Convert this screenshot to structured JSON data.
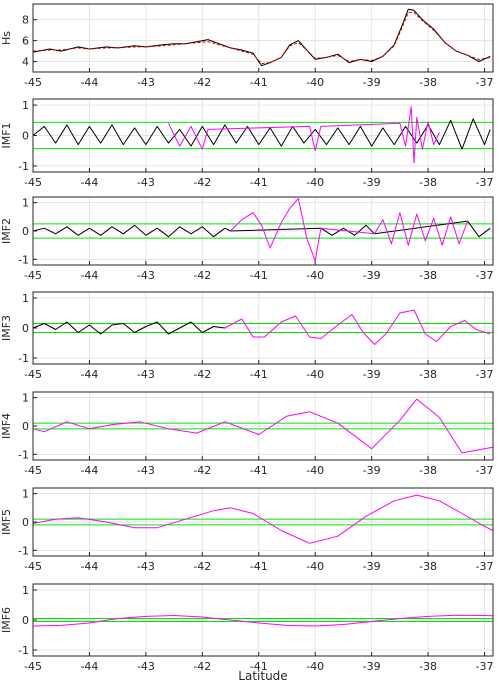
{
  "chart_data": {
    "type": "line",
    "xlabel": "Latitude",
    "xlim": [
      -45,
      -36.85
    ],
    "xticks": [
      -45,
      -44,
      -43,
      -42,
      -41,
      -40,
      -39,
      -38,
      -37
    ],
    "colors": {
      "signal": "#000000",
      "overlay": "#ff00ff",
      "reconstruction": "#cc0000",
      "threshold": "#00e600",
      "grid": "#e3e3e3",
      "axis": "#262626"
    },
    "panels": [
      {
        "ylabel": "Hs",
        "ylim": [
          3,
          9.5
        ],
        "yticks": [
          4,
          6,
          8
        ],
        "series": [
          {
            "role": "signal",
            "x": [
              -45,
              -44.7,
              -44.5,
              -44.2,
              -44,
              -43.7,
              -43.5,
              -43.2,
              -43,
              -42.7,
              -42.5,
              -42.3,
              -42.1,
              -41.9,
              -41.7,
              -41.5,
              -41.3,
              -41.1,
              -40.95,
              -40.8,
              -40.6,
              -40.45,
              -40.3,
              -40.15,
              -40,
              -39.8,
              -39.6,
              -39.4,
              -39.2,
              -39,
              -38.8,
              -38.6,
              -38.45,
              -38.35,
              -38.25,
              -38.1,
              -37.9,
              -37.7,
              -37.5,
              -37.3,
              -37.1,
              -36.9
            ],
            "values": [
              4.9,
              5.2,
              5.0,
              5.4,
              5.2,
              5.4,
              5.3,
              5.5,
              5.4,
              5.6,
              5.7,
              5.7,
              5.9,
              6.1,
              5.7,
              5.3,
              5.1,
              4.8,
              3.6,
              3.9,
              4.4,
              5.6,
              6.0,
              5.1,
              4.2,
              4.4,
              4.7,
              3.9,
              4.2,
              4.0,
              4.5,
              5.6,
              7.6,
              9.0,
              8.9,
              8.0,
              7.1,
              5.8,
              5.0,
              4.6,
              4.0,
              4.5
            ]
          },
          {
            "role": "reconstruction",
            "x": [
              -45,
              -44.7,
              -44.5,
              -44.2,
              -44,
              -43.7,
              -43.5,
              -43.2,
              -43,
              -42.7,
              -42.5,
              -42.3,
              -42.1,
              -41.9,
              -41.7,
              -41.5,
              -41.3,
              -41.1,
              -40.95,
              -40.8,
              -40.6,
              -40.45,
              -40.3,
              -40.15,
              -40,
              -39.8,
              -39.6,
              -39.4,
              -39.2,
              -39,
              -38.8,
              -38.6,
              -38.45,
              -38.35,
              -38.25,
              -38.1,
              -37.9,
              -37.7,
              -37.5,
              -37.3,
              -37.1,
              -36.9
            ],
            "values": [
              5.0,
              5.1,
              5.1,
              5.3,
              5.2,
              5.3,
              5.3,
              5.4,
              5.4,
              5.5,
              5.6,
              5.7,
              5.8,
              5.9,
              5.6,
              5.3,
              5.0,
              4.7,
              3.8,
              3.9,
              4.4,
              5.5,
              5.8,
              5.1,
              4.3,
              4.4,
              4.6,
              4.0,
              4.2,
              4.1,
              4.5,
              5.5,
              7.4,
              8.7,
              8.7,
              7.9,
              7.0,
              5.8,
              5.0,
              4.6,
              4.2,
              4.4
            ]
          }
        ]
      },
      {
        "ylabel": "IMF1",
        "ylim": [
          -1.2,
          1.2
        ],
        "yticks": [
          -1,
          0,
          1
        ],
        "thresholds": [
          0.43,
          -0.43
        ],
        "series": [
          {
            "role": "signal",
            "x": [
              -45,
              -44.8,
              -44.6,
              -44.4,
              -44.2,
              -44,
              -43.8,
              -43.6,
              -43.4,
              -43.2,
              -43,
              -42.8,
              -42.6,
              -42.4,
              -42.2,
              -42,
              -41.8,
              -41.6,
              -41.4,
              -41.2,
              -41,
              -40.8,
              -40.6,
              -40.4,
              -40.2,
              -40,
              -39.8,
              -39.6,
              -39.4,
              -39.2,
              -39,
              -38.8,
              -38.6,
              -38.4,
              -38.2,
              -38,
              -37.8,
              -37.6,
              -37.4,
              -37.2,
              -37,
              -36.9
            ],
            "values": [
              0,
              0.3,
              -0.25,
              0.35,
              -0.3,
              0.3,
              -0.25,
              0.35,
              -0.3,
              0.25,
              -0.3,
              0.3,
              -0.25,
              0.2,
              -0.35,
              0.3,
              -0.3,
              0.35,
              -0.25,
              0.3,
              -0.3,
              0.25,
              -0.35,
              0.3,
              -0.25,
              0.2,
              -0.3,
              0.25,
              -0.3,
              0.3,
              -0.35,
              0.25,
              -0.3,
              0.3,
              -0.25,
              0.35,
              -0.3,
              0.5,
              -0.45,
              0.55,
              -0.3,
              0.2
            ]
          },
          {
            "role": "overlay",
            "x": [
              -42.6,
              -42.4,
              -42.2,
              -42,
              -41.9,
              -40.1,
              -40,
              -39.9,
              -38.5,
              -38.4,
              -38.3,
              -38.25,
              -38.2,
              -38.1,
              -38,
              -37.9,
              -37.8
            ],
            "values": [
              0.4,
              -0.35,
              0.3,
              -0.45,
              0.2,
              0.3,
              -0.5,
              0.3,
              0.4,
              -0.35,
              0.95,
              -0.9,
              0.6,
              -0.45,
              0.45,
              -0.3,
              0.1
            ]
          }
        ]
      },
      {
        "ylabel": "IMF2",
        "ylim": [
          -1.2,
          1.2
        ],
        "yticks": [
          -1,
          0,
          1
        ],
        "thresholds": [
          0.25,
          -0.25
        ],
        "series": [
          {
            "role": "signal",
            "x": [
              -45,
              -44.8,
              -44.6,
              -44.4,
              -44.2,
              -44,
              -43.8,
              -43.6,
              -43.4,
              -43.2,
              -43,
              -42.8,
              -42.6,
              -42.4,
              -42.2,
              -42,
              -41.8,
              -41.6,
              -41.5,
              -39.9,
              -39.7,
              -39.5,
              -39.3,
              -39.1,
              -38.95,
              -37.3,
              -37.1,
              -36.9
            ],
            "values": [
              0,
              0.1,
              -0.1,
              0.15,
              -0.15,
              0.1,
              -0.15,
              0.15,
              -0.1,
              0.2,
              -0.15,
              0.1,
              -0.2,
              0.15,
              -0.1,
              0.15,
              -0.2,
              0.1,
              0,
              0.1,
              -0.15,
              0.1,
              -0.15,
              0.2,
              -0.1,
              0.35,
              -0.2,
              0.1
            ]
          },
          {
            "role": "overlay",
            "x": [
              -41.5,
              -41.3,
              -41.1,
              -40.95,
              -40.8,
              -40.6,
              -40.45,
              -40.3,
              -40.15,
              -40,
              -39.9,
              -38.95,
              -38.8,
              -38.65,
              -38.5,
              -38.35,
              -38.2,
              -38.05,
              -37.9,
              -37.75,
              -37.6,
              -37.45,
              -37.3
            ],
            "values": [
              0,
              0.4,
              0.65,
              0.2,
              -0.6,
              0.3,
              0.8,
              1.15,
              -0.25,
              -1.05,
              0.1,
              -0.1,
              0.4,
              -0.45,
              0.65,
              -0.5,
              0.6,
              -0.35,
              0.45,
              -0.5,
              0.5,
              -0.45,
              0.35
            ]
          }
        ]
      },
      {
        "ylabel": "IMF3",
        "ylim": [
          -1.2,
          1.2
        ],
        "yticks": [
          -1,
          0,
          1
        ],
        "thresholds": [
          0.15,
          -0.15
        ],
        "series": [
          {
            "role": "signal",
            "x": [
              -45,
              -44.8,
              -44.6,
              -44.4,
              -44.2,
              -44,
              -43.8,
              -43.6,
              -43.4,
              -43.2,
              -43,
              -42.8,
              -42.6,
              -42.4,
              -42.2,
              -42,
              -41.8,
              -41.6
            ],
            "values": [
              0,
              0.15,
              -0.05,
              0.2,
              -0.15,
              0.1,
              -0.2,
              0.1,
              0.15,
              -0.15,
              0.05,
              0.2,
              -0.2,
              0,
              0.2,
              -0.15,
              0.05,
              0
            ]
          },
          {
            "role": "overlay",
            "x": [
              -41.6,
              -41.3,
              -41.1,
              -40.9,
              -40.6,
              -40.35,
              -40.1,
              -39.9,
              -39.6,
              -39.35,
              -39.15,
              -38.95,
              -38.75,
              -38.5,
              -38.25,
              -38.05,
              -37.85,
              -37.6,
              -37.35,
              -37.15,
              -36.9
            ],
            "values": [
              0,
              0.3,
              -0.3,
              -0.3,
              0.2,
              0.4,
              -0.3,
              -0.35,
              0.1,
              0.45,
              -0.15,
              -0.55,
              -0.2,
              0.5,
              0.6,
              -0.2,
              -0.45,
              0.05,
              0.25,
              -0.05,
              -0.2
            ]
          }
        ]
      },
      {
        "ylabel": "IMF4",
        "ylim": [
          -1.2,
          1.2
        ],
        "yticks": [
          -1,
          0,
          1
        ],
        "thresholds": [
          0.1,
          -0.1
        ],
        "series": [
          {
            "role": "overlay",
            "x": [
              -45,
              -44.8,
              -44.4,
              -44.0,
              -43.6,
              -43.1,
              -42.6,
              -42.1,
              -41.6,
              -41.0,
              -40.5,
              -40.1,
              -39.6,
              -39.0,
              -38.5,
              -38.2,
              -37.8,
              -37.4,
              -37.0,
              -36.85
            ],
            "values": [
              -0.1,
              -0.2,
              0.15,
              -0.1,
              0.05,
              0.15,
              -0.1,
              -0.25,
              0.15,
              -0.3,
              0.35,
              0.5,
              0.1,
              -0.8,
              0.2,
              0.95,
              0.3,
              -0.95,
              -0.8,
              -0.75
            ]
          }
        ]
      },
      {
        "ylabel": "IMF5",
        "ylim": [
          -1.2,
          1.2
        ],
        "yticks": [
          -1,
          0,
          1
        ],
        "thresholds": [
          0.1,
          -0.1
        ],
        "series": [
          {
            "role": "overlay",
            "x": [
              -45,
              -44.6,
              -44.2,
              -43.7,
              -43.2,
              -42.8,
              -42.3,
              -41.8,
              -41.5,
              -41.1,
              -40.6,
              -40.1,
              -39.6,
              -39.1,
              -38.6,
              -38.2,
              -37.8,
              -37.4,
              -37.0,
              -36.85
            ],
            "values": [
              -0.05,
              0.1,
              0.15,
              0.0,
              -0.2,
              -0.2,
              0.1,
              0.4,
              0.5,
              0.3,
              -0.3,
              -0.75,
              -0.5,
              0.2,
              0.75,
              0.95,
              0.75,
              0.3,
              -0.15,
              -0.3
            ]
          }
        ]
      },
      {
        "ylabel": "IMF6",
        "ylim": [
          -1.2,
          1.2
        ],
        "yticks": [
          -1,
          0,
          1
        ],
        "thresholds": [
          0.05,
          -0.05
        ],
        "series": [
          {
            "role": "overlay",
            "x": [
              -45,
              -44.5,
              -44,
              -43.5,
              -43,
              -42.5,
              -42,
              -41.5,
              -41,
              -40.5,
              -40,
              -39.5,
              -39,
              -38.5,
              -38,
              -37.5,
              -37,
              -36.85
            ],
            "values": [
              -0.2,
              -0.18,
              -0.1,
              0.05,
              0.12,
              0.15,
              0.1,
              0.0,
              -0.1,
              -0.18,
              -0.2,
              -0.15,
              -0.05,
              0.05,
              0.12,
              0.16,
              0.15,
              0.14
            ]
          }
        ]
      }
    ]
  }
}
